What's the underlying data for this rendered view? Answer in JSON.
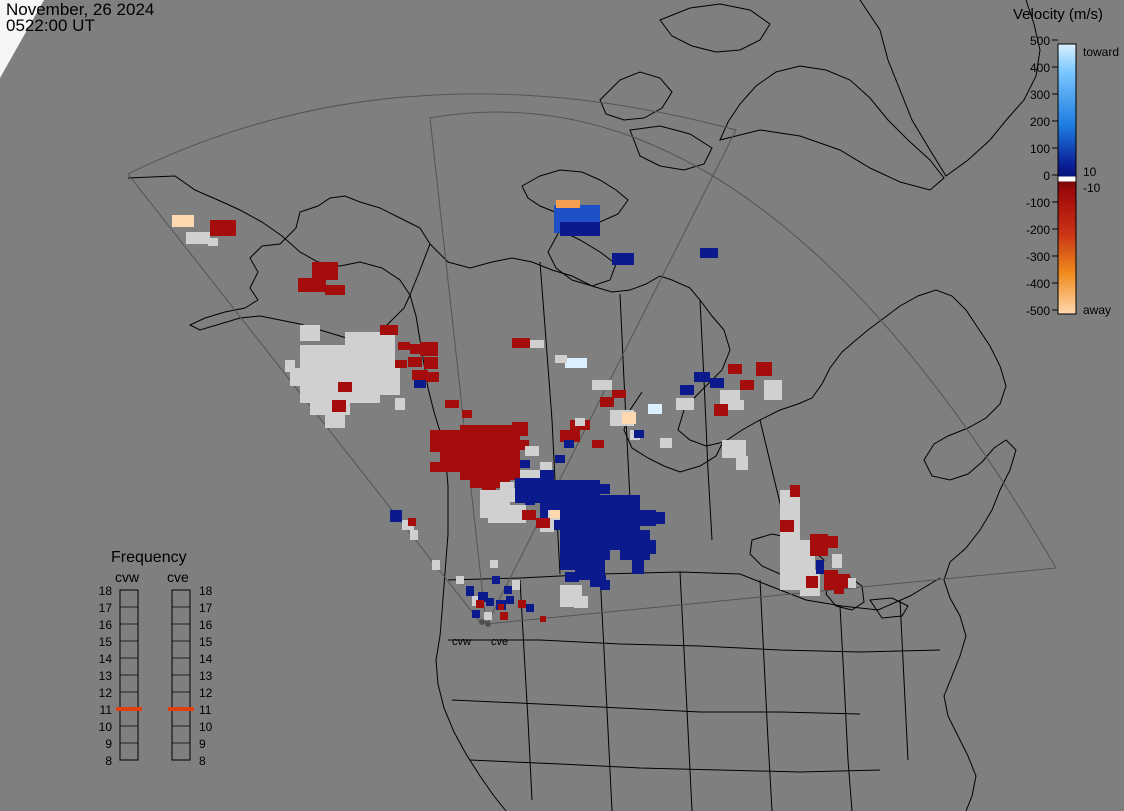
{
  "header": {
    "date": "November, 26 2024",
    "time": "0522:00 UT"
  },
  "velocity_legend": {
    "title": "Velocity (m/s)",
    "ticks": [
      "500",
      "400",
      "300",
      "200",
      "100",
      "0",
      "-100",
      "-200",
      "-300",
      "-400",
      "-500"
    ],
    "right_labels": [
      "toward",
      "10",
      "-10",
      "away"
    ],
    "colors": {
      "toward_max": "#d6efff",
      "toward_mid": "#1e88e8",
      "toward_low": "#0a1e96",
      "zero": "#d9d9d9",
      "away_low": "#a00a0a",
      "away_mid": "#e05a00",
      "away_max": "#ffd8b0"
    }
  },
  "frequency_panel": {
    "title": "Frequency",
    "radars": [
      "cvw",
      "cve"
    ],
    "levels": [
      "18",
      "17",
      "16",
      "15",
      "14",
      "13",
      "12",
      "11",
      "10",
      "9",
      "8"
    ],
    "selected": {
      "cvw": 11,
      "cve": 11
    },
    "marker_color": "#e04010"
  },
  "sites": [
    "cvw",
    "cve"
  ],
  "map_colors": {
    "background": "#7f7f7f",
    "coastline": "#000000",
    "fov": "#555555",
    "ground_scatter": "#d0d0d0",
    "away": "#a50d0d",
    "toward": "#0b1a8c"
  }
}
